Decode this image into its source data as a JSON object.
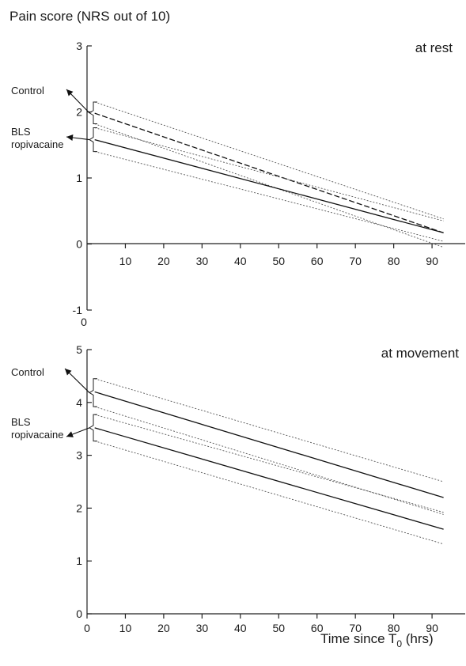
{
  "header": {
    "ylabel": "Pain score (NRS out of 10)"
  },
  "footer": {
    "xlabel_prefix": "Time since T",
    "xlabel_sub": "0",
    "xlabel_suffix": " (hrs)"
  },
  "chart_data": [
    {
      "type": "line",
      "title": "at rest",
      "xlim": [
        0,
        97
      ],
      "ylim": [
        -1,
        3
      ],
      "x_ticks": [
        10,
        20,
        30,
        40,
        50,
        60,
        70,
        80,
        90
      ],
      "y_ticks": [
        3,
        2,
        1,
        0,
        -1
      ],
      "origin_label": "0",
      "annotations": [
        {
          "text": "Control",
          "lines": [
            "Control"
          ]
        },
        {
          "text": "BLS ropivacaine",
          "lines": [
            "BLS",
            "ropivacaine"
          ]
        }
      ],
      "series": [
        {
          "x": [
            2,
            93
          ],
          "mean": [
            1.98,
            0.17
          ],
          "lower": [
            1.82,
            -0.05
          ],
          "upper": [
            2.15,
            0.38
          ]
        },
        {
          "x": [
            2,
            93
          ],
          "mean": [
            1.58,
            0.17
          ],
          "lower": [
            1.4,
            0.04
          ],
          "upper": [
            1.76,
            0.35
          ]
        }
      ]
    },
    {
      "type": "line",
      "title": "at movement",
      "xlim": [
        0,
        97
      ],
      "ylim": [
        0,
        5
      ],
      "x_ticks": [
        0,
        10,
        20,
        30,
        40,
        50,
        60,
        70,
        80,
        90
      ],
      "y_ticks": [
        5,
        4,
        3,
        2,
        1,
        0
      ],
      "annotations": [
        {
          "text": "Control",
          "lines": [
            "Control"
          ]
        },
        {
          "text": "BLS ropivacaine",
          "lines": [
            "BLS",
            "ropivacaine"
          ]
        }
      ],
      "series": [
        {
          "x": [
            2,
            93
          ],
          "mean": [
            4.2,
            2.2
          ],
          "lower": [
            3.92,
            1.88
          ],
          "upper": [
            4.45,
            2.5
          ]
        },
        {
          "x": [
            2,
            93
          ],
          "mean": [
            3.52,
            1.6
          ],
          "lower": [
            3.27,
            1.32
          ],
          "upper": [
            3.77,
            1.92
          ]
        }
      ]
    }
  ]
}
